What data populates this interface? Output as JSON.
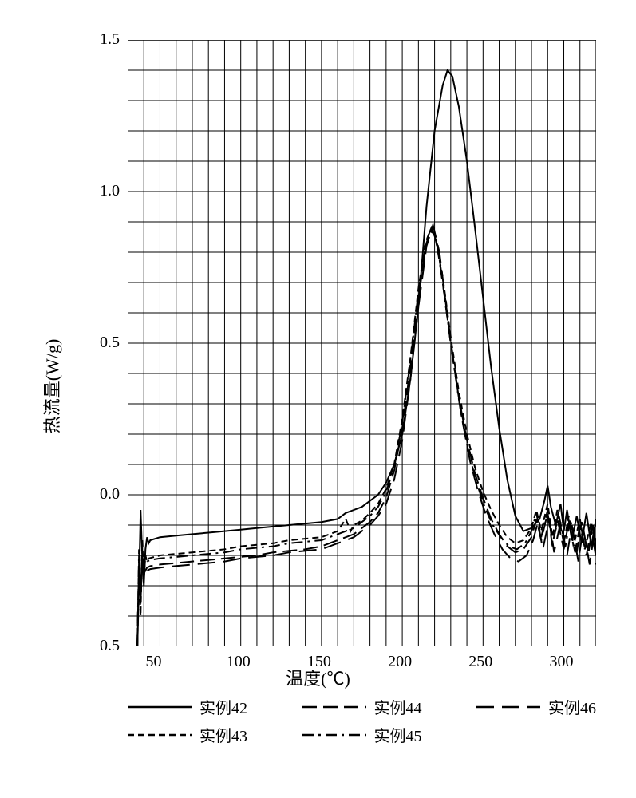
{
  "chart": {
    "type": "line",
    "background_color": "#ffffff",
    "grid_color": "#000000",
    "grid_stroke": 1,
    "border_color": "#000000",
    "border_stroke": 2,
    "line_color": "#000000",
    "line_stroke": 2,
    "x_axis": {
      "title": "温度(℃)",
      "min": 30,
      "max": 320,
      "ticks": [
        50,
        100,
        150,
        200,
        250,
        300
      ],
      "minor_step": 10,
      "title_fontsize": 22,
      "tick_fontsize": 20
    },
    "y_axis": {
      "title": "热流量(W/g)",
      "min": -0.5,
      "max": 1.5,
      "ticks": [
        -0.5,
        0.0,
        0.5,
        1.0,
        1.5
      ],
      "tick_labels": [
        "0.5",
        "0.0",
        "0.5",
        "1.0",
        "1.5"
      ],
      "minor_step": 0.1,
      "title_fontsize": 22,
      "tick_fontsize": 20
    },
    "legend": {
      "columns": [
        [
          {
            "series_key": "ex42",
            "label": "实例42"
          },
          {
            "series_key": "ex43",
            "label": "实例43"
          }
        ],
        [
          {
            "series_key": "ex44",
            "label": "实例44"
          },
          {
            "series_key": "ex45",
            "label": "实例45"
          }
        ],
        [
          {
            "series_key": "ex46",
            "label": "实例46"
          }
        ]
      ]
    },
    "series": {
      "ex42": {
        "label": "实例42",
        "dash": null,
        "color": "#000000",
        "data": [
          [
            36,
            -0.5
          ],
          [
            37,
            -0.3
          ],
          [
            38,
            -0.05
          ],
          [
            39,
            -0.2
          ],
          [
            40,
            -0.3
          ],
          [
            41,
            -0.18
          ],
          [
            42,
            -0.14
          ],
          [
            43,
            -0.16
          ],
          [
            44,
            -0.15
          ],
          [
            50,
            -0.14
          ],
          [
            60,
            -0.135
          ],
          [
            70,
            -0.13
          ],
          [
            80,
            -0.125
          ],
          [
            90,
            -0.12
          ],
          [
            100,
            -0.115
          ],
          [
            110,
            -0.11
          ],
          [
            120,
            -0.105
          ],
          [
            130,
            -0.1
          ],
          [
            140,
            -0.095
          ],
          [
            150,
            -0.09
          ],
          [
            160,
            -0.08
          ],
          [
            165,
            -0.06
          ],
          [
            170,
            -0.05
          ],
          [
            175,
            -0.04
          ],
          [
            180,
            -0.02
          ],
          [
            185,
            0.0
          ],
          [
            190,
            0.04
          ],
          [
            195,
            0.1
          ],
          [
            200,
            0.2
          ],
          [
            205,
            0.38
          ],
          [
            210,
            0.62
          ],
          [
            215,
            0.95
          ],
          [
            220,
            1.2
          ],
          [
            225,
            1.35
          ],
          [
            228,
            1.4
          ],
          [
            231,
            1.38
          ],
          [
            235,
            1.28
          ],
          [
            240,
            1.1
          ],
          [
            245,
            0.88
          ],
          [
            250,
            0.65
          ],
          [
            255,
            0.42
          ],
          [
            260,
            0.22
          ],
          [
            265,
            0.05
          ],
          [
            270,
            -0.07
          ],
          [
            275,
            -0.12
          ],
          [
            280,
            -0.11
          ],
          [
            285,
            -0.08
          ],
          [
            288,
            -0.02
          ],
          [
            290,
            0.03
          ],
          [
            292,
            -0.04
          ],
          [
            295,
            -0.1
          ],
          [
            298,
            -0.03
          ],
          [
            300,
            -0.12
          ],
          [
            302,
            -0.05
          ],
          [
            305,
            -0.15
          ],
          [
            308,
            -0.07
          ],
          [
            311,
            -0.16
          ],
          [
            314,
            -0.06
          ],
          [
            317,
            -0.17
          ],
          [
            320,
            -0.08
          ]
        ]
      },
      "ex43": {
        "label": "实例43",
        "dash": "8,5",
        "color": "#000000",
        "data": [
          [
            36,
            -0.5
          ],
          [
            37,
            -0.25
          ],
          [
            38,
            -0.4
          ],
          [
            39,
            -0.15
          ],
          [
            40,
            -0.28
          ],
          [
            41,
            -0.2
          ],
          [
            42,
            -0.22
          ],
          [
            43,
            -0.21
          ],
          [
            50,
            -0.2
          ],
          [
            60,
            -0.195
          ],
          [
            70,
            -0.19
          ],
          [
            80,
            -0.185
          ],
          [
            90,
            -0.18
          ],
          [
            100,
            -0.17
          ],
          [
            110,
            -0.165
          ],
          [
            120,
            -0.16
          ],
          [
            130,
            -0.15
          ],
          [
            140,
            -0.145
          ],
          [
            150,
            -0.14
          ],
          [
            160,
            -0.12
          ],
          [
            165,
            -0.08
          ],
          [
            168,
            -0.12
          ],
          [
            170,
            -0.1
          ],
          [
            175,
            -0.085
          ],
          [
            180,
            -0.06
          ],
          [
            185,
            -0.03
          ],
          [
            190,
            0.02
          ],
          [
            195,
            0.1
          ],
          [
            200,
            0.25
          ],
          [
            205,
            0.45
          ],
          [
            210,
            0.68
          ],
          [
            214,
            0.82
          ],
          [
            217,
            0.87
          ],
          [
            220,
            0.86
          ],
          [
            225,
            0.72
          ],
          [
            230,
            0.52
          ],
          [
            235,
            0.34
          ],
          [
            240,
            0.2
          ],
          [
            245,
            0.09
          ],
          [
            250,
            0.01
          ],
          [
            255,
            -0.05
          ],
          [
            260,
            -0.1
          ],
          [
            265,
            -0.14
          ],
          [
            270,
            -0.16
          ],
          [
            275,
            -0.15
          ],
          [
            280,
            -0.11
          ],
          [
            283,
            -0.05
          ],
          [
            286,
            -0.12
          ],
          [
            290,
            -0.03
          ],
          [
            293,
            -0.14
          ],
          [
            296,
            -0.05
          ],
          [
            300,
            -0.16
          ],
          [
            303,
            -0.07
          ],
          [
            306,
            -0.17
          ],
          [
            310,
            -0.08
          ],
          [
            313,
            -0.18
          ],
          [
            317,
            -0.09
          ],
          [
            320,
            -0.19
          ]
        ]
      },
      "ex44": {
        "label": "实例44",
        "dash": "18,8",
        "color": "#000000",
        "data": [
          [
            36,
            -0.5
          ],
          [
            37,
            -0.2
          ],
          [
            38,
            -0.35
          ],
          [
            39,
            -0.22
          ],
          [
            40,
            -0.26
          ],
          [
            42,
            -0.24
          ],
          [
            44,
            -0.235
          ],
          [
            50,
            -0.23
          ],
          [
            60,
            -0.225
          ],
          [
            70,
            -0.22
          ],
          [
            80,
            -0.215
          ],
          [
            90,
            -0.21
          ],
          [
            100,
            -0.205
          ],
          [
            110,
            -0.2
          ],
          [
            120,
            -0.19
          ],
          [
            130,
            -0.185
          ],
          [
            140,
            -0.18
          ],
          [
            150,
            -0.17
          ],
          [
            160,
            -0.15
          ],
          [
            170,
            -0.13
          ],
          [
            175,
            -0.11
          ],
          [
            180,
            -0.09
          ],
          [
            185,
            -0.06
          ],
          [
            190,
            -0.01
          ],
          [
            195,
            0.08
          ],
          [
            200,
            0.22
          ],
          [
            205,
            0.42
          ],
          [
            210,
            0.65
          ],
          [
            215,
            0.83
          ],
          [
            218,
            0.88
          ],
          [
            221,
            0.84
          ],
          [
            225,
            0.7
          ],
          [
            230,
            0.5
          ],
          [
            235,
            0.32
          ],
          [
            240,
            0.18
          ],
          [
            245,
            0.07
          ],
          [
            250,
            -0.01
          ],
          [
            255,
            -0.08
          ],
          [
            260,
            -0.13
          ],
          [
            265,
            -0.17
          ],
          [
            270,
            -0.19
          ],
          [
            275,
            -0.18
          ],
          [
            280,
            -0.14
          ],
          [
            283,
            -0.08
          ],
          [
            286,
            -0.15
          ],
          [
            290,
            -0.06
          ],
          [
            293,
            -0.17
          ],
          [
            296,
            -0.08
          ],
          [
            300,
            -0.18
          ],
          [
            303,
            -0.09
          ],
          [
            307,
            -0.19
          ],
          [
            310,
            -0.1
          ],
          [
            314,
            -0.2
          ],
          [
            317,
            -0.11
          ],
          [
            320,
            -0.21
          ]
        ]
      },
      "ex45": {
        "label": "实例45",
        "dash": "14,6,3,6",
        "color": "#000000",
        "data": [
          [
            36,
            -0.5
          ],
          [
            37,
            -0.18
          ],
          [
            38,
            -0.32
          ],
          [
            39,
            -0.19
          ],
          [
            40,
            -0.24
          ],
          [
            42,
            -0.22
          ],
          [
            44,
            -0.215
          ],
          [
            50,
            -0.21
          ],
          [
            60,
            -0.205
          ],
          [
            70,
            -0.2
          ],
          [
            80,
            -0.195
          ],
          [
            90,
            -0.19
          ],
          [
            100,
            -0.18
          ],
          [
            110,
            -0.175
          ],
          [
            120,
            -0.17
          ],
          [
            130,
            -0.16
          ],
          [
            140,
            -0.155
          ],
          [
            150,
            -0.15
          ],
          [
            160,
            -0.13
          ],
          [
            170,
            -0.11
          ],
          [
            175,
            -0.09
          ],
          [
            180,
            -0.07
          ],
          [
            185,
            -0.04
          ],
          [
            190,
            0.01
          ],
          [
            195,
            0.09
          ],
          [
            200,
            0.24
          ],
          [
            205,
            0.44
          ],
          [
            210,
            0.67
          ],
          [
            215,
            0.84
          ],
          [
            218,
            0.88
          ],
          [
            222,
            0.82
          ],
          [
            226,
            0.66
          ],
          [
            231,
            0.46
          ],
          [
            236,
            0.28
          ],
          [
            241,
            0.14
          ],
          [
            246,
            0.04
          ],
          [
            251,
            -0.04
          ],
          [
            256,
            -0.1
          ],
          [
            261,
            -0.14
          ],
          [
            266,
            -0.17
          ],
          [
            271,
            -0.18
          ],
          [
            276,
            -0.16
          ],
          [
            280,
            -0.12
          ],
          [
            283,
            -0.06
          ],
          [
            286,
            -0.14
          ],
          [
            290,
            -0.05
          ],
          [
            293,
            -0.16
          ],
          [
            297,
            -0.07
          ],
          [
            301,
            -0.17
          ],
          [
            304,
            -0.08
          ],
          [
            308,
            -0.19
          ],
          [
            311,
            -0.09
          ],
          [
            315,
            -0.2
          ],
          [
            318,
            -0.1
          ],
          [
            320,
            -0.21
          ]
        ]
      },
      "ex46": {
        "label": "实例46",
        "dash": "22,10",
        "color": "#000000",
        "data": [
          [
            36,
            -0.5
          ],
          [
            37,
            -0.22
          ],
          [
            38,
            -0.36
          ],
          [
            39,
            -0.2
          ],
          [
            40,
            -0.27
          ],
          [
            42,
            -0.25
          ],
          [
            44,
            -0.245
          ],
          [
            50,
            -0.24
          ],
          [
            60,
            -0.235
          ],
          [
            70,
            -0.23
          ],
          [
            80,
            -0.225
          ],
          [
            90,
            -0.22
          ],
          [
            100,
            -0.21
          ],
          [
            110,
            -0.205
          ],
          [
            120,
            -0.2
          ],
          [
            130,
            -0.19
          ],
          [
            140,
            -0.185
          ],
          [
            150,
            -0.18
          ],
          [
            160,
            -0.16
          ],
          [
            170,
            -0.14
          ],
          [
            175,
            -0.12
          ],
          [
            180,
            -0.1
          ],
          [
            185,
            -0.07
          ],
          [
            190,
            -0.03
          ],
          [
            195,
            0.05
          ],
          [
            200,
            0.18
          ],
          [
            205,
            0.38
          ],
          [
            210,
            0.62
          ],
          [
            215,
            0.82
          ],
          [
            219,
            0.89
          ],
          [
            223,
            0.8
          ],
          [
            227,
            0.63
          ],
          [
            232,
            0.43
          ],
          [
            237,
            0.25
          ],
          [
            242,
            0.11
          ],
          [
            247,
            0.01
          ],
          [
            252,
            -0.07
          ],
          [
            257,
            -0.13
          ],
          [
            262,
            -0.18
          ],
          [
            267,
            -0.21
          ],
          [
            272,
            -0.22
          ],
          [
            277,
            -0.2
          ],
          [
            281,
            -0.15
          ],
          [
            284,
            -0.09
          ],
          [
            287,
            -0.18
          ],
          [
            291,
            -0.08
          ],
          [
            294,
            -0.19
          ],
          [
            298,
            -0.09
          ],
          [
            302,
            -0.2
          ],
          [
            305,
            -0.1
          ],
          [
            309,
            -0.22
          ],
          [
            312,
            -0.11
          ],
          [
            316,
            -0.23
          ],
          [
            319,
            -0.12
          ],
          [
            320,
            -0.23
          ]
        ]
      }
    }
  }
}
